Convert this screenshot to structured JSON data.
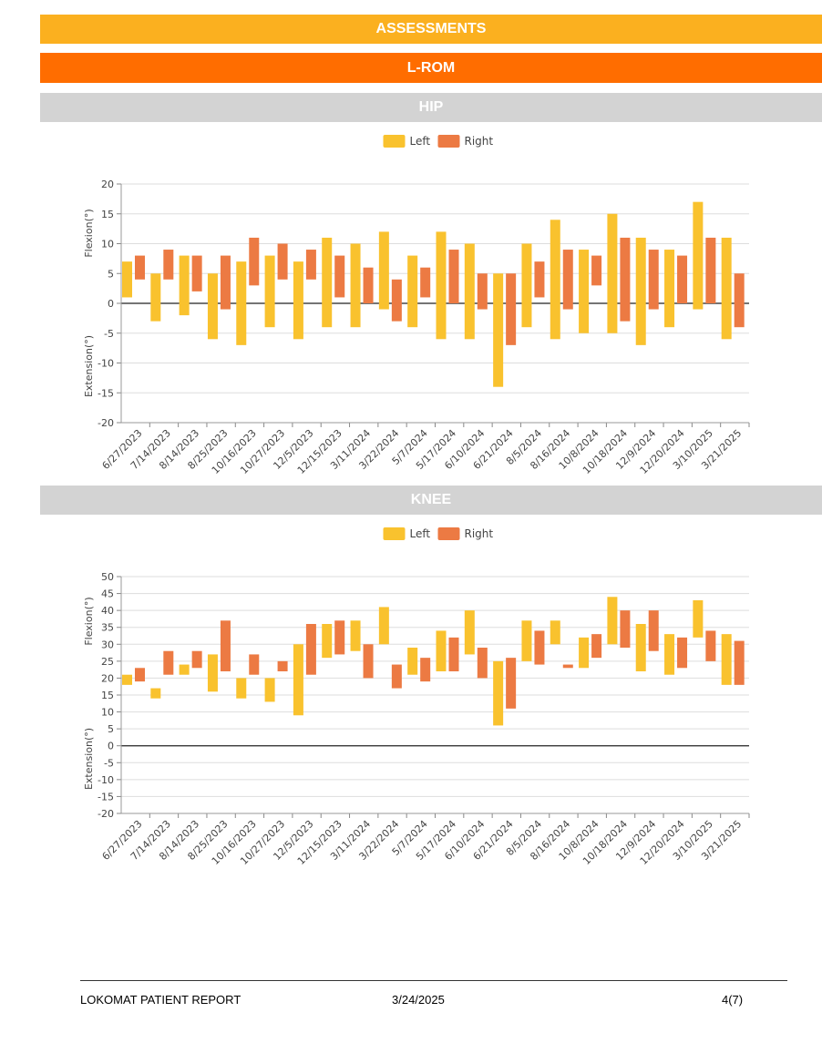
{
  "headers": {
    "assessments": "ASSESSMENTS",
    "lrom": "L-ROM",
    "hip": "HIP",
    "knee": "KNEE"
  },
  "colors": {
    "left": "#f9c22e",
    "right": "#ec7a43",
    "assessments_band": "#fbb01f",
    "lrom_band": "#ff6d00",
    "section_band": "#d3d3d3"
  },
  "footer": {
    "title": "LOKOMAT PATIENT REPORT",
    "date": "3/24/2025",
    "page": "4(7)"
  },
  "chart_data": [
    {
      "type": "bar",
      "name": "HIP",
      "categories": [
        "6/27/2023",
        "7/14/2023",
        "8/14/2023",
        "8/25/2023",
        "10/16/2023",
        "10/27/2023",
        "12/5/2023",
        "12/15/2023",
        "3/11/2024",
        "3/22/2024",
        "5/7/2024",
        "5/17/2024",
        "6/10/2024",
        "6/21/2024",
        "8/5/2024",
        "8/16/2024",
        "10/8/2024",
        "10/18/2024",
        "12/9/2024",
        "12/20/2024",
        "3/10/2025",
        "3/21/2025"
      ],
      "series": [
        {
          "name": "Left",
          "ranges": [
            [
              1,
              7
            ],
            [
              -3,
              5
            ],
            [
              -2,
              8
            ],
            [
              -6,
              5
            ],
            [
              -7,
              7
            ],
            [
              -4,
              8
            ],
            [
              -6,
              7
            ],
            [
              -4,
              11
            ],
            [
              -4,
              10
            ],
            [
              -1,
              12
            ],
            [
              -4,
              8
            ],
            [
              -6,
              12
            ],
            [
              -6,
              10
            ],
            [
              -14,
              5
            ],
            [
              -4,
              10
            ],
            [
              -6,
              14
            ],
            [
              -5,
              9
            ],
            [
              -5,
              15
            ],
            [
              -7,
              11
            ],
            [
              -4,
              9
            ],
            [
              -1,
              17
            ],
            [
              -6,
              11
            ]
          ]
        },
        {
          "name": "Right",
          "ranges": [
            [
              4,
              8
            ],
            [
              4,
              9
            ],
            [
              2,
              8
            ],
            [
              -1,
              8
            ],
            [
              3,
              11
            ],
            [
              4,
              10
            ],
            [
              4,
              9
            ],
            [
              1,
              8
            ],
            [
              0,
              6
            ],
            [
              -3,
              4
            ],
            [
              1,
              6
            ],
            [
              0,
              9
            ],
            [
              -1,
              5
            ],
            [
              -7,
              5
            ],
            [
              1,
              7
            ],
            [
              -1,
              9
            ],
            [
              3,
              8
            ],
            [
              -3,
              11
            ],
            [
              -1,
              9
            ],
            [
              0,
              8
            ],
            [
              0,
              11
            ],
            [
              -4,
              5
            ]
          ]
        }
      ],
      "y_tick_labels": [
        "20",
        "15",
        "10",
        "5",
        "0",
        "-5",
        "-10",
        "-15",
        "-20"
      ],
      "ylim": [
        -20,
        20
      ],
      "ylabel_top": "Flexion(°)",
      "ylabel_bottom": "Extension(°)",
      "legend": [
        "Left",
        "Right"
      ],
      "legend_position": "top-center",
      "grid": true
    },
    {
      "type": "bar",
      "name": "KNEE",
      "categories": [
        "6/27/2023",
        "7/14/2023",
        "8/14/2023",
        "8/25/2023",
        "10/16/2023",
        "10/27/2023",
        "12/5/2023",
        "12/15/2023",
        "3/11/2024",
        "3/22/2024",
        "5/7/2024",
        "5/17/2024",
        "6/10/2024",
        "6/21/2024",
        "8/5/2024",
        "8/16/2024",
        "10/8/2024",
        "10/18/2024",
        "12/9/2024",
        "12/20/2024",
        "3/10/2025",
        "3/21/2025"
      ],
      "series": [
        {
          "name": "Left",
          "ranges": [
            [
              18,
              21
            ],
            [
              14,
              17
            ],
            [
              21,
              24
            ],
            [
              16,
              27
            ],
            [
              14,
              20
            ],
            [
              13,
              20
            ],
            [
              9,
              30
            ],
            [
              26,
              36
            ],
            [
              28,
              37
            ],
            [
              30,
              41
            ],
            [
              21,
              29
            ],
            [
              22,
              34
            ],
            [
              27,
              40
            ],
            [
              6,
              25
            ],
            [
              25,
              37
            ],
            [
              30,
              37
            ],
            [
              23,
              32
            ],
            [
              30,
              44
            ],
            [
              22,
              36
            ],
            [
              21,
              33
            ],
            [
              32,
              43
            ],
            [
              18,
              33
            ]
          ]
        },
        {
          "name": "Right",
          "ranges": [
            [
              19,
              23
            ],
            [
              21,
              28
            ],
            [
              23,
              28
            ],
            [
              22,
              37
            ],
            [
              21,
              27
            ],
            [
              22,
              25
            ],
            [
              21,
              36
            ],
            [
              27,
              37
            ],
            [
              20,
              30
            ],
            [
              17,
              24
            ],
            [
              19,
              26
            ],
            [
              22,
              32
            ],
            [
              20,
              29
            ],
            [
              11,
              26
            ],
            [
              24,
              34
            ],
            [
              23,
              24
            ],
            [
              26,
              33
            ],
            [
              29,
              40
            ],
            [
              28,
              40
            ],
            [
              23,
              32
            ],
            [
              25,
              34
            ],
            [
              18,
              31
            ]
          ]
        }
      ],
      "y_tick_labels": [
        "50",
        "45",
        "40",
        "35",
        "30",
        "25",
        "20",
        "15",
        "10",
        "5",
        "0",
        "-5",
        "-10",
        "-15",
        "-20"
      ],
      "ylim": [
        -20,
        50
      ],
      "ylabel_top": "Flexion(°)",
      "ylabel_bottom": "Extension(°)",
      "legend": [
        "Left",
        "Right"
      ],
      "legend_position": "top-center",
      "grid": true
    }
  ]
}
